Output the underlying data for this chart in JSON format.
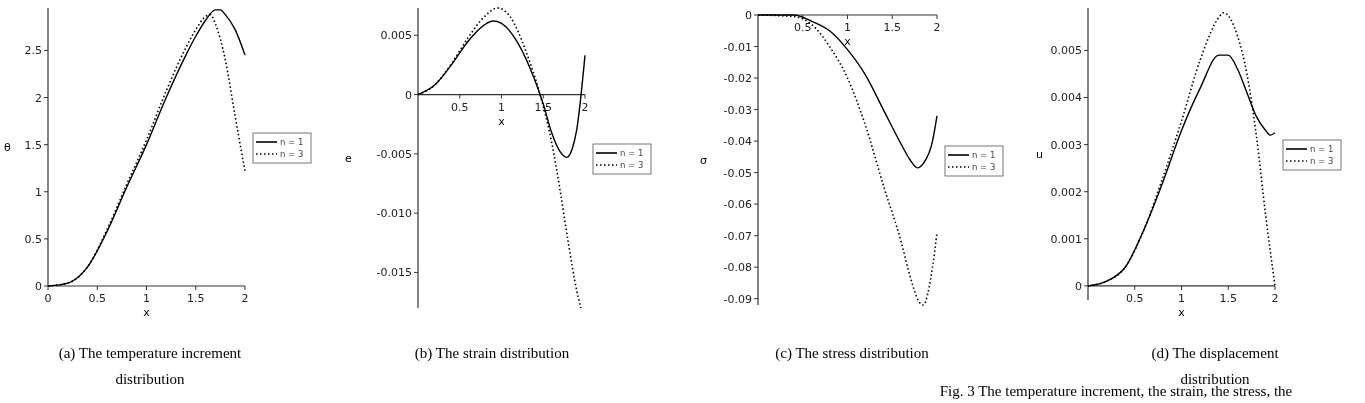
{
  "chart_data": [
    {
      "type": "line",
      "title": "(a) The temperature increment distribution",
      "xlabel": "x",
      "ylabel": "θ",
      "xlim": [
        0,
        2
      ],
      "ylim": [
        0,
        2.95
      ],
      "xticks": [
        0,
        0.5,
        1,
        1.5,
        2
      ],
      "yticks": [
        0,
        0.5,
        1,
        1.5,
        2,
        2.5
      ],
      "legend": "right",
      "series": [
        {
          "name": "n = 1",
          "color": "#000000",
          "line_style": "solid",
          "x": [
            0,
            0.2,
            0.4,
            0.6,
            0.8,
            1,
            1.2,
            1.4,
            1.5,
            1.6,
            1.7,
            1.75,
            1.8,
            1.9,
            2
          ],
          "values": [
            0,
            0.03,
            0.2,
            0.58,
            1.05,
            1.5,
            2,
            2.45,
            2.65,
            2.82,
            2.93,
            2.93,
            2.88,
            2.72,
            2.45
          ]
        },
        {
          "name": "n = 3",
          "color": "#000000",
          "line_style": "dotted",
          "x": [
            0,
            0.2,
            0.4,
            0.6,
            0.8,
            1,
            1.2,
            1.4,
            1.5,
            1.6,
            1.65,
            1.7,
            1.8,
            1.9,
            2
          ],
          "values": [
            0,
            0.03,
            0.2,
            0.6,
            1.08,
            1.55,
            2.07,
            2.53,
            2.72,
            2.86,
            2.88,
            2.78,
            2.4,
            1.8,
            1.22
          ]
        }
      ]
    },
    {
      "type": "line",
      "title": "(b) The strain distribution",
      "xlabel": "x",
      "ylabel": "e",
      "xlim": [
        0,
        2
      ],
      "ylim": [
        -0.018,
        0.0073
      ],
      "xticks": [
        0.5,
        1,
        1.5,
        2
      ],
      "yticks": [
        -0.015,
        {
          "value": -0.01,
          "label": "-0.010"
        },
        -0.005,
        0,
        0.005
      ],
      "legend": "right",
      "series": [
        {
          "name": "n = 1",
          "color": "#000000",
          "line_style": "solid",
          "x": [
            0,
            0.2,
            0.4,
            0.6,
            0.8,
            0.9,
            1,
            1.2,
            1.4,
            1.5,
            1.6,
            1.7,
            1.78,
            1.85,
            1.9,
            2
          ],
          "values": [
            0,
            0.0008,
            0.0025,
            0.0045,
            0.0059,
            0.0062,
            0.006,
            0.0043,
            0.0012,
            -0.0008,
            -0.0032,
            -0.0048,
            -0.0053,
            -0.0045,
            -0.003,
            0.0033
          ]
        },
        {
          "name": "n = 3",
          "color": "#000000",
          "line_style": "dotted",
          "x": [
            0,
            0.2,
            0.4,
            0.6,
            0.8,
            0.95,
            1.1,
            1.3,
            1.45,
            1.5,
            1.6,
            1.7,
            1.8,
            1.9,
            1.95
          ],
          "values": [
            0,
            0.0008,
            0.0026,
            0.0048,
            0.0066,
            0.0073,
            0.0066,
            0.0035,
            0.0003,
            -0.001,
            -0.004,
            -0.008,
            -0.0125,
            -0.0165,
            -0.018
          ]
        }
      ]
    },
    {
      "type": "line",
      "title": "(c) The stress distribution",
      "xlabel": "x",
      "ylabel": "σ",
      "xlim": [
        0,
        2
      ],
      "ylim": [
        -0.092,
        0
      ],
      "xticks": [
        0.5,
        1,
        1.5,
        2
      ],
      "yticks": [
        0,
        -0.01,
        -0.02,
        -0.03,
        -0.04,
        -0.05,
        -0.06,
        -0.07,
        -0.08,
        -0.09
      ],
      "legend": "right",
      "series": [
        {
          "name": "n = 1",
          "color": "#000000",
          "line_style": "solid",
          "x": [
            0,
            0.4,
            0.6,
            0.8,
            1,
            1.2,
            1.4,
            1.6,
            1.7,
            1.78,
            1.85,
            1.95,
            2
          ],
          "values": [
            0,
            0,
            -0.002,
            -0.005,
            -0.011,
            -0.019,
            -0.03,
            -0.041,
            -0.046,
            -0.0485,
            -0.047,
            -0.04,
            -0.032
          ]
        },
        {
          "name": "n = 3",
          "color": "#000000",
          "line_style": "dotted",
          "x": [
            0,
            0.4,
            0.6,
            0.8,
            1,
            1.2,
            1.4,
            1.6,
            1.7,
            1.8,
            1.85,
            1.9,
            1.95,
            2
          ],
          "values": [
            0,
            -0.0005,
            -0.003,
            -0.01,
            -0.02,
            -0.035,
            -0.054,
            -0.072,
            -0.083,
            -0.091,
            -0.092,
            -0.088,
            -0.08,
            -0.069
          ]
        }
      ]
    },
    {
      "type": "line",
      "title": "(d) The displacement distribution",
      "xlabel": "x",
      "ylabel": "u",
      "xlim": [
        0,
        2
      ],
      "ylim": [
        -0.0003,
        0.0059
      ],
      "xticks": [
        0.5,
        1,
        1.5,
        2
      ],
      "yticks": [
        0,
        0.001,
        0.002,
        0.003,
        0.004,
        0.005
      ],
      "legend": "right",
      "annotations": [
        "Fig. 3 The temperature increment, the strain, the stress, the"
      ],
      "series": [
        {
          "name": "n = 1",
          "color": "#000000",
          "line_style": "solid",
          "x": [
            0,
            0.2,
            0.4,
            0.6,
            0.8,
            1,
            1.2,
            1.4,
            1.5,
            1.6,
            1.7,
            1.8,
            1.9,
            1.95,
            2
          ],
          "values": [
            0,
            0.0001,
            0.0004,
            0.0012,
            0.0022,
            0.0033,
            0.0042,
            0.0049,
            0.0049,
            0.0046,
            0.0041,
            0.0036,
            0.0033,
            0.0032,
            0.00325
          ]
        },
        {
          "name": "n = 3",
          "color": "#000000",
          "line_style": "dotted",
          "x": [
            0,
            0.2,
            0.4,
            0.6,
            0.8,
            1,
            1.2,
            1.4,
            1.45,
            1.6,
            1.7,
            1.8,
            1.9,
            2
          ],
          "values": [
            0,
            0.0001,
            0.0004,
            0.0012,
            0.0023,
            0.0035,
            0.0048,
            0.0057,
            0.0058,
            0.0053,
            0.0045,
            0.0032,
            0.0015,
            0
          ]
        }
      ]
    }
  ]
}
